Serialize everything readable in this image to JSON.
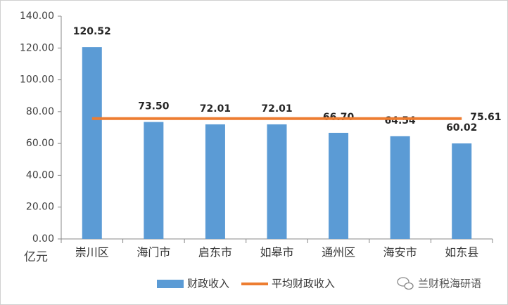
{
  "chart_data": {
    "type": "bar",
    "y_axis_label": "亿元",
    "categories": [
      "崇川区",
      "海门市",
      "启东市",
      "如皋市",
      "通州区",
      "海安市",
      "如东县"
    ],
    "series": [
      {
        "name": "财政收入",
        "type": "bar",
        "color": "#5b9bd5",
        "values": [
          120.52,
          73.5,
          72.01,
          72.01,
          66.7,
          64.54,
          60.02
        ],
        "value_labels": [
          "120.52",
          "73.50",
          "72.01",
          "72.01",
          "66.70",
          "64.54",
          "60.02"
        ]
      },
      {
        "name": "平均财政收入",
        "type": "line",
        "color": "#ed7d31",
        "values": [
          75.61,
          75.61,
          75.61,
          75.61,
          75.61,
          75.61,
          75.61
        ]
      }
    ],
    "ylim": [
      0,
      140
    ],
    "yticks": [
      {
        "value": 0,
        "label": "0.00"
      },
      {
        "value": 20,
        "label": "20.00"
      },
      {
        "value": 40,
        "label": "40.00"
      },
      {
        "value": 60,
        "label": "60.00"
      },
      {
        "value": 80,
        "label": "80.00"
      },
      {
        "value": 100,
        "label": "100.00"
      },
      {
        "value": 120,
        "label": "120.00"
      },
      {
        "value": 140,
        "label": "140.00"
      }
    ],
    "grid": false,
    "legend": "bottom",
    "watermark": "兰财税海研语"
  }
}
